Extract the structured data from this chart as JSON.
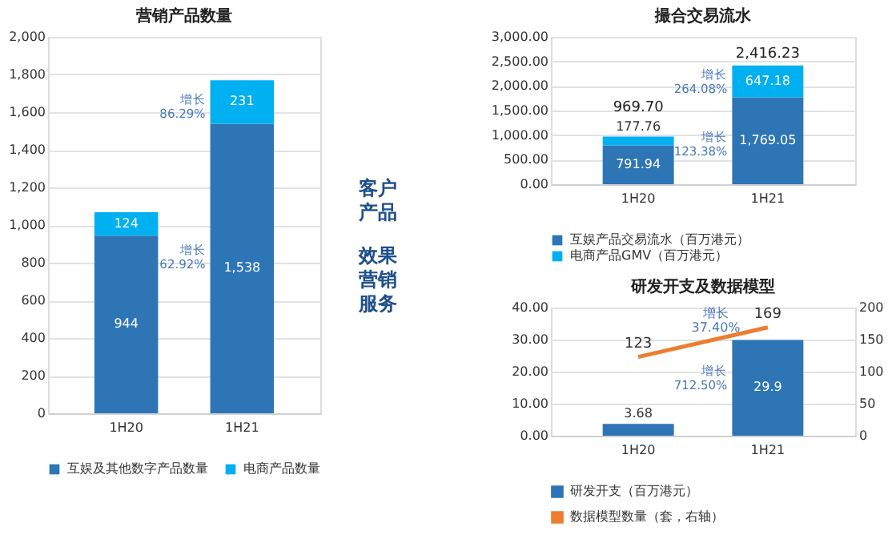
{
  "chart_data": [
    {
      "type": "bar",
      "title": "营销产品数量",
      "categories": [
        "1H20",
        "1H21"
      ],
      "stacked": true,
      "series": [
        {
          "name": "互娱及其他数字产品数量",
          "color": "#2e75b6",
          "values": [
            944,
            1538
          ],
          "value_labels": [
            "944",
            "1,538"
          ]
        },
        {
          "name": "电商产品数量",
          "color": "#00b0f0",
          "values": [
            124,
            231
          ],
          "value_labels": [
            "124",
            "231"
          ]
        }
      ],
      "ylim": [
        0,
        2000
      ],
      "yticks": [
        0,
        200,
        400,
        600,
        800,
        {
          "value": 1000,
          "label": "1,000"
        },
        {
          "value": 1200,
          "label": "1,200"
        },
        {
          "value": 1400,
          "label": "1,400"
        },
        {
          "value": 1600,
          "label": "1,600"
        },
        {
          "value": 1800,
          "label": "1,800"
        },
        {
          "value": 2000,
          "label": "2,000"
        }
      ],
      "grid": "y",
      "legend": "bottom",
      "annotations": [
        "增长 86.29%",
        "增长 62.92%",
        "客户产品",
        "效果营销服务"
      ]
    },
    {
      "type": "bar",
      "title": "撮合交易流水",
      "categories": [
        "1H20",
        "1H21"
      ],
      "stacked": true,
      "series": [
        {
          "name": "互娱产品交易流水（百万港元）",
          "color": "#2e75b6",
          "values": [
            791.94,
            1769.05
          ],
          "value_labels": [
            "791.94",
            "1,769.05"
          ]
        },
        {
          "name": "电商产品GMV（百万港元）",
          "color": "#00b0f0",
          "values": [
            177.76,
            647.18
          ],
          "value_labels": [
            "177.76",
            "647.18"
          ]
        }
      ],
      "totals": [
        "969.70",
        "2,416.23"
      ],
      "ylim": [
        0,
        3000
      ],
      "yticks": [
        {
          "value": 0,
          "label": "0.00"
        },
        {
          "value": 500,
          "label": "500.00"
        },
        {
          "value": 1000,
          "label": "1,000.00"
        },
        {
          "value": 1500,
          "label": "1,500.00"
        },
        {
          "value": 2000,
          "label": "2,000.00"
        },
        {
          "value": 2500,
          "label": "2,500.00"
        },
        {
          "value": 3000,
          "label": "3,000.00"
        }
      ],
      "grid": "y",
      "legend": "bottom",
      "annotations": [
        "增长 264.08%",
        "增长 123.38%"
      ]
    },
    {
      "type": "bar",
      "title": "研发开支及数据模型",
      "categories": [
        "1H20",
        "1H21"
      ],
      "series": [
        {
          "name": "研发开支（百万港元）",
          "type": "bar",
          "color": "#2e75b6",
          "values": [
            3.68,
            29.9
          ]
        },
        {
          "name": "数据模型数量（套，右轴）",
          "type": "line",
          "axis": "y2",
          "color": "#ed7d31",
          "values": [
            123,
            169
          ]
        }
      ],
      "data_labels": true,
      "ylim": [
        0,
        40
      ],
      "yticks": [
        {
          "value": 0,
          "label": "0.00"
        },
        {
          "value": 10,
          "label": "10.00"
        },
        {
          "value": 20,
          "label": "20.00"
        },
        {
          "value": 30,
          "label": "30.00"
        },
        {
          "value": 40,
          "label": "40.00"
        }
      ],
      "y2lim": [
        0,
        200
      ],
      "y2ticks": [
        0,
        50,
        100,
        150,
        200
      ],
      "grid": "y",
      "legend": "bottom",
      "annotations": [
        "增长 37.40%",
        "增长 712.50%"
      ]
    }
  ]
}
